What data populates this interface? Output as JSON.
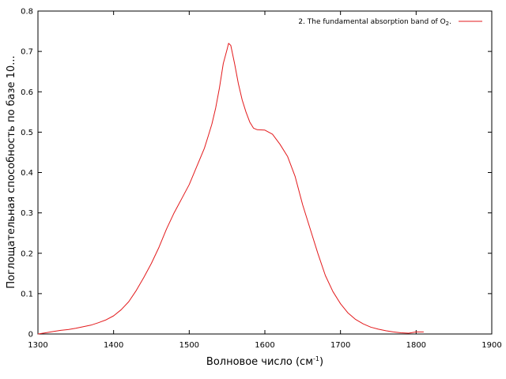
{
  "chart_data": {
    "type": "line",
    "title": "",
    "xlabel": "Волновое число (см",
    "xlabel_sup": "-1",
    "xlabel_suffix": ")",
    "ylabel": "Поглощательная способность по базе 10...",
    "xlim": [
      1300,
      1900
    ],
    "ylim": [
      0,
      0.8
    ],
    "xticks": [
      1300,
      1400,
      1500,
      1600,
      1700,
      1800,
      1900
    ],
    "yticks": [
      0,
      0.1,
      0.2,
      0.3,
      0.4,
      0.5,
      0.6,
      0.7,
      0.8
    ],
    "grid": false,
    "legend_position": "top-right",
    "series": [
      {
        "name": "2. The fundamental absorption band of O",
        "name_sub": "2",
        "name_suffix": ".",
        "color": "#e31a1c",
        "x": [
          1300,
          1310,
          1320,
          1330,
          1340,
          1350,
          1360,
          1370,
          1380,
          1390,
          1400,
          1410,
          1420,
          1430,
          1440,
          1450,
          1460,
          1470,
          1480,
          1490,
          1500,
          1510,
          1520,
          1525,
          1530,
          1535,
          1540,
          1545,
          1550,
          1552,
          1555,
          1560,
          1565,
          1570,
          1575,
          1580,
          1585,
          1590,
          1600,
          1610,
          1620,
          1630,
          1640,
          1650,
          1660,
          1670,
          1680,
          1690,
          1700,
          1710,
          1720,
          1730,
          1740,
          1750,
          1760,
          1770,
          1780,
          1790,
          1800,
          1810
        ],
        "values": [
          0.0,
          0.003,
          0.006,
          0.009,
          0.011,
          0.014,
          0.018,
          0.022,
          0.028,
          0.035,
          0.045,
          0.06,
          0.08,
          0.108,
          0.14,
          0.175,
          0.215,
          0.26,
          0.3,
          0.335,
          0.37,
          0.415,
          0.46,
          0.49,
          0.52,
          0.56,
          0.61,
          0.67,
          0.705,
          0.72,
          0.715,
          0.67,
          0.62,
          0.58,
          0.55,
          0.525,
          0.51,
          0.506,
          0.505,
          0.495,
          0.47,
          0.44,
          0.39,
          0.32,
          0.26,
          0.2,
          0.145,
          0.105,
          0.075,
          0.052,
          0.036,
          0.025,
          0.017,
          0.012,
          0.008,
          0.005,
          0.003,
          0.002,
          0.005,
          0.005
        ]
      }
    ]
  }
}
